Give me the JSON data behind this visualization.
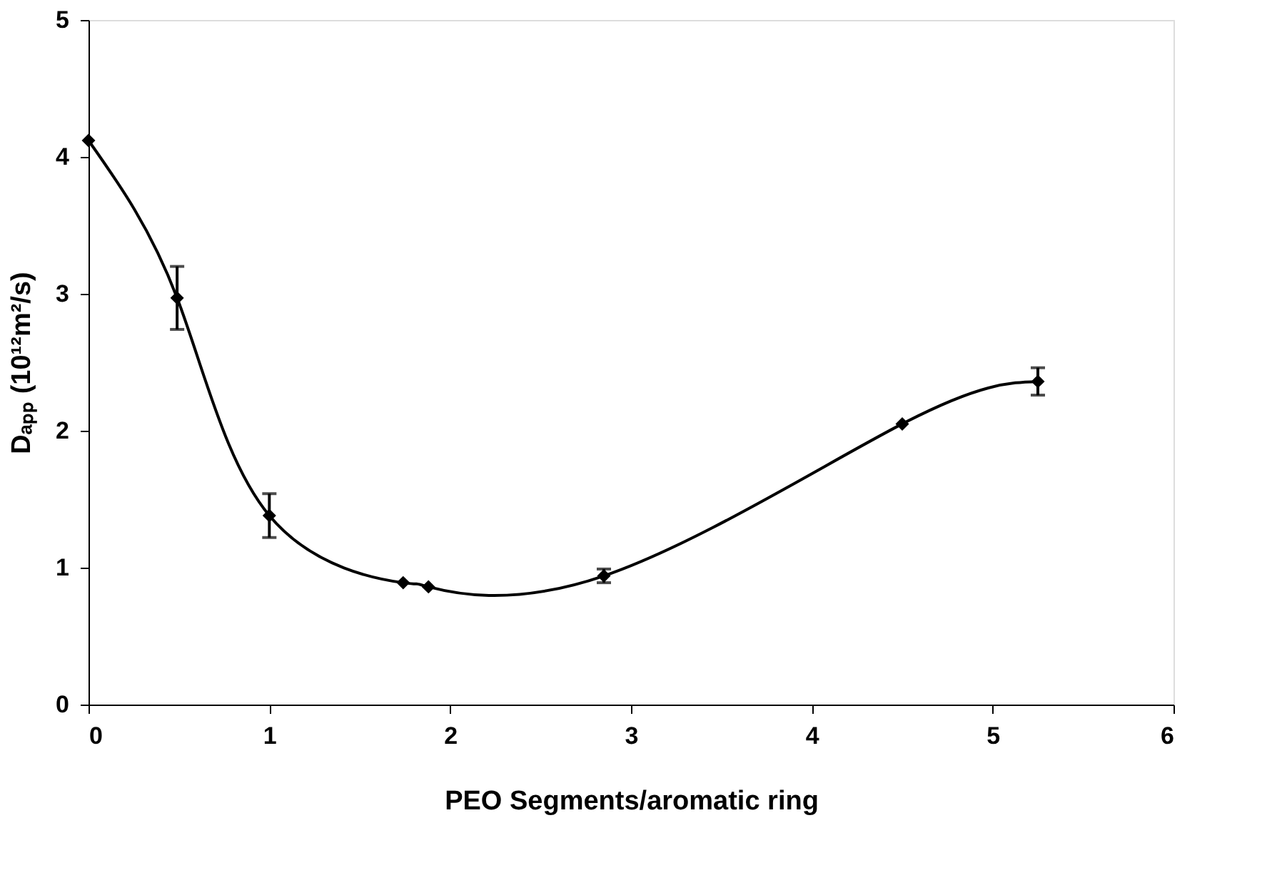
{
  "chart_data": {
    "type": "line",
    "xlabel": "PEO Segments/aromatic ring",
    "ylabel": "Dₐₚₚ (10¹²m²/s)",
    "x": [
      0,
      0.49,
      1.0,
      1.74,
      1.88,
      2.85,
      4.5,
      5.25
    ],
    "series": [
      {
        "color": "#000000",
        "values": [
          4.12,
          2.97,
          1.38,
          0.89,
          0.86,
          0.94,
          2.05,
          2.36
        ],
        "errors": [
          null,
          0.23,
          0.16,
          null,
          null,
          0.05,
          null,
          0.1
        ]
      }
    ],
    "xlim": [
      0,
      6
    ],
    "xticks": [
      0,
      1,
      2,
      3,
      4,
      5,
      6
    ],
    "ylim": [
      0,
      5
    ],
    "yticks": [
      0,
      1,
      2,
      3,
      4,
      5
    ],
    "grid": false,
    "marker": "diamond",
    "line_style": "solid"
  }
}
